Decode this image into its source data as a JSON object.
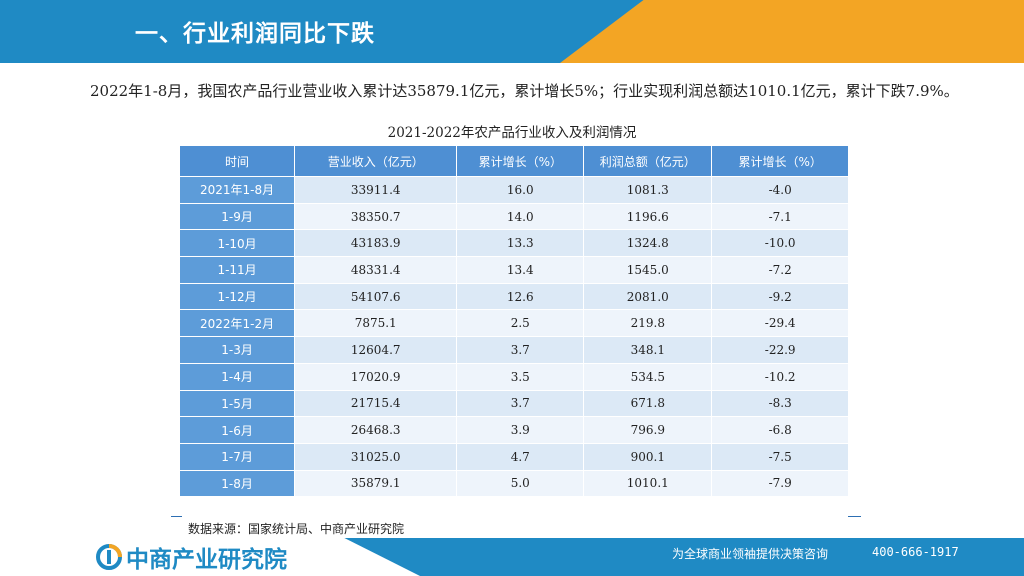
{
  "header": {
    "title": "一、行业利润同比下跌"
  },
  "paragraph": "2022年1-8月，我国农产品行业营业收入累计达35879.1亿元，累计增长5%；行业实现利润总额达1010.1亿元，累计下跌7.9%。",
  "table": {
    "title": "2021-2022年农产品行业收入及利润情况",
    "headers": [
      "时间",
      "营业收入（亿元）",
      "累计增长（%）",
      "利润总额（亿元）",
      "累计增长（%）"
    ],
    "rows": [
      [
        "2021年1-8月",
        "33911.4",
        "16.0",
        "1081.3",
        "-4.0"
      ],
      [
        "1-9月",
        "38350.7",
        "14.0",
        "1196.6",
        "-7.1"
      ],
      [
        "1-10月",
        "43183.9",
        "13.3",
        "1324.8",
        "-10.0"
      ],
      [
        "1-11月",
        "48331.4",
        "13.4",
        "1545.0",
        "-7.2"
      ],
      [
        "1-12月",
        "54107.6",
        "12.6",
        "2081.0",
        "-9.2"
      ],
      [
        "2022年1-2月",
        "7875.1",
        "2.5",
        "219.8",
        "-29.4"
      ],
      [
        "1-3月",
        "12604.7",
        "3.7",
        "348.1",
        "-22.9"
      ],
      [
        "1-4月",
        "17020.9",
        "3.5",
        "534.5",
        "-10.2"
      ],
      [
        "1-5月",
        "21715.4",
        "3.7",
        "671.8",
        "-8.3"
      ],
      [
        "1-6月",
        "26468.3",
        "3.9",
        "796.9",
        "-6.8"
      ],
      [
        "1-7月",
        "31025.0",
        "4.7",
        "900.1",
        "-7.5"
      ],
      [
        "1-8月",
        "35879.1",
        "5.0",
        "1010.1",
        "-7.9"
      ]
    ],
    "source": "数据来源：国家统计局、中商产业研究院"
  },
  "footer": {
    "logo_text": "中商产业研究院",
    "slogan": "为全球商业领袖提供决策咨询",
    "phone": "400-666-1917"
  },
  "colors": {
    "header_blue": "#1f8ac4",
    "header_orange": "#f3a524",
    "table_header": "#4e8fd3"
  }
}
